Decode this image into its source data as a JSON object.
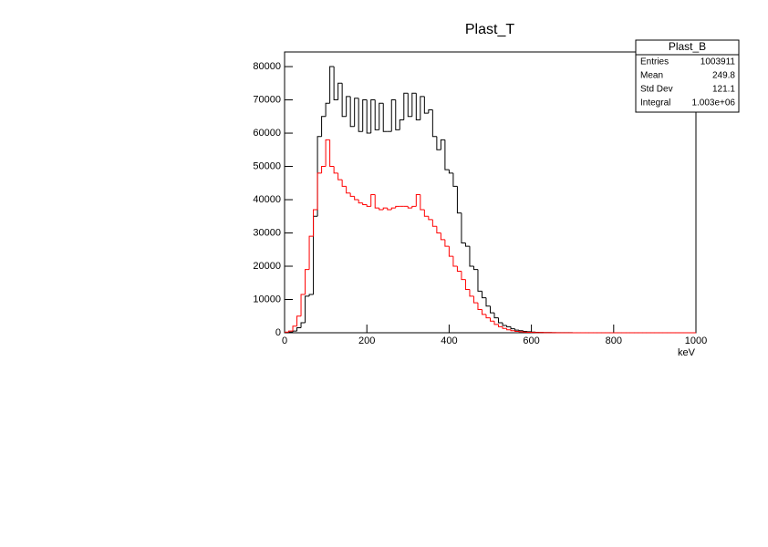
{
  "chart_data": {
    "type": "histogram",
    "title": "Plast_T",
    "x_label": "keV",
    "bins": [
      0,
      10,
      20,
      30,
      40,
      50,
      60,
      70,
      80,
      90,
      100,
      110,
      120,
      130,
      140,
      150,
      160,
      170,
      180,
      190,
      200,
      210,
      220,
      230,
      240,
      250,
      260,
      270,
      280,
      290,
      300,
      310,
      320,
      330,
      340,
      350,
      360,
      370,
      380,
      390,
      400,
      410,
      420,
      430,
      440,
      450,
      460,
      470,
      480,
      490,
      500,
      510,
      520,
      530,
      540,
      550,
      560,
      570,
      580,
      590,
      600,
      610,
      620,
      630,
      640,
      650,
      660,
      670,
      680,
      690,
      700,
      710,
      720,
      730,
      740,
      750,
      760,
      770,
      780,
      790,
      800,
      810,
      820,
      830,
      840,
      850,
      860,
      870,
      880,
      890,
      900,
      910,
      920,
      930,
      940,
      950,
      960,
      970,
      980,
      990,
      1000
    ],
    "series": [
      {
        "color": "#000000",
        "values": [
          0,
          200,
          500,
          1500,
          3000,
          11000,
          11500,
          35000,
          59000,
          65000,
          69000,
          80000,
          70000,
          75000,
          65000,
          71000,
          62000,
          70500,
          60500,
          70000,
          60000,
          70000,
          61000,
          69000,
          60500,
          60500,
          70000,
          61000,
          64000,
          72000,
          65000,
          72000,
          64000,
          71000,
          66000,
          67000,
          59000,
          55000,
          58000,
          49000,
          48000,
          44000,
          36000,
          27000,
          26000,
          20000,
          19000,
          12500,
          10500,
          8000,
          6000,
          4500,
          3000,
          2200,
          1800,
          1200,
          800,
          600,
          400,
          300,
          200,
          150,
          100,
          80,
          60,
          50,
          40,
          30,
          25,
          20,
          15,
          12,
          10,
          8,
          6,
          5,
          4,
          3,
          3,
          2,
          2,
          1,
          1,
          1,
          1,
          0,
          0,
          0,
          0,
          0,
          0,
          0,
          0,
          0,
          0,
          0,
          0,
          0,
          0,
          0
        ]
      },
      {
        "color": "#ff0000",
        "values": [
          200,
          500,
          2000,
          5000,
          11500,
          19000,
          29000,
          37000,
          48000,
          50000,
          58000,
          50000,
          48000,
          46000,
          44000,
          42000,
          41000,
          40000,
          39000,
          38500,
          38000,
          41500,
          37500,
          37000,
          37500,
          37000,
          37500,
          38000,
          38000,
          38000,
          37500,
          38000,
          41500,
          37000,
          35000,
          34000,
          32000,
          30000,
          28000,
          26000,
          23000,
          20000,
          18500,
          16000,
          13000,
          11000,
          9000,
          7000,
          5500,
          4500,
          3500,
          2500,
          1800,
          1300,
          900,
          600,
          400,
          300,
          200,
          150,
          100,
          80,
          60,
          40,
          30,
          20,
          15,
          10,
          8,
          6,
          5,
          4,
          3,
          2,
          2,
          1,
          1,
          1,
          0,
          0,
          0,
          0,
          0,
          0,
          0,
          0,
          0,
          0,
          0,
          0,
          0,
          0,
          0,
          0,
          0,
          0,
          0,
          0,
          0,
          0
        ]
      }
    ],
    "xlim": [
      0,
      1000
    ],
    "xticks": [
      0,
      200,
      400,
      600,
      800,
      1000
    ],
    "ylim": [
      0,
      84400
    ],
    "yticks": [
      0,
      10000,
      20000,
      30000,
      40000,
      50000,
      60000,
      70000,
      80000
    ],
    "stats": {
      "title": "Plast_B",
      "rows": [
        [
          "Entries",
          "1003911"
        ],
        [
          "Mean",
          "249.8"
        ],
        [
          "Std Dev",
          "121.1"
        ],
        [
          "Integral",
          "1.003e+06"
        ]
      ]
    }
  }
}
